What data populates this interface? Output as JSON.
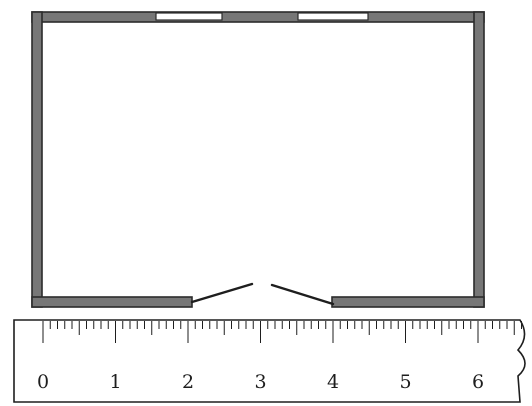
{
  "ruler": {
    "unit_labels": [
      "0",
      "1",
      "2",
      "3",
      "4",
      "5",
      "6"
    ],
    "minor_divisions_per_unit": 10,
    "visible_extent_units": 6.6
  },
  "room": {
    "windows": 2,
    "door_leaves": 2
  },
  "colors": {
    "wall": "#777777",
    "outline": "#1e1e1e",
    "background": "#ffffff"
  }
}
